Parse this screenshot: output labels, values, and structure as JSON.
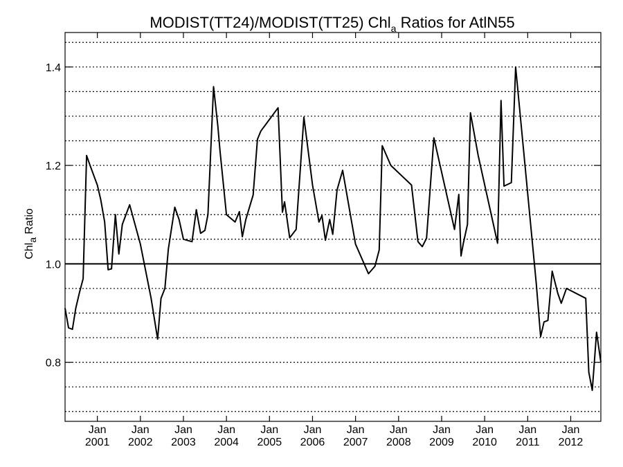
{
  "chart_data": {
    "type": "line",
    "title": {
      "part1": "MODIST(TT24)/MODIST(TT25)  Chl",
      "subscript": "a",
      "part2": " Ratios for AtlN55"
    },
    "ylabel": {
      "main": "Chl",
      "subscript": "a",
      "rest": " Ratio"
    },
    "ylim": [
      0.68,
      1.47
    ],
    "xlim": [
      2000.25,
      2012.7
    ],
    "y_ticks": [
      {
        "value": 0.8,
        "label": "0.8"
      },
      {
        "value": 1.0,
        "label": "1.0"
      },
      {
        "value": 1.2,
        "label": "1.2"
      },
      {
        "value": 1.4,
        "label": "1.4"
      }
    ],
    "y_grid_values": [
      0.7,
      0.75,
      0.8,
      0.85,
      0.9,
      0.95,
      1.05,
      1.1,
      1.15,
      1.2,
      1.25,
      1.3,
      1.35,
      1.4,
      1.45
    ],
    "grid": "dotted horizontal",
    "reference_line": 1.0,
    "x_ticks": [
      {
        "value": 2001.0,
        "month": "Jan",
        "year": "2001"
      },
      {
        "value": 2002.0,
        "month": "Jan",
        "year": "2002"
      },
      {
        "value": 2003.0,
        "month": "Jan",
        "year": "2003"
      },
      {
        "value": 2004.0,
        "month": "Jan",
        "year": "2004"
      },
      {
        "value": 2005.0,
        "month": "Jan",
        "year": "2005"
      },
      {
        "value": 2006.0,
        "month": "Jan",
        "year": "2006"
      },
      {
        "value": 2007.0,
        "month": "Jan",
        "year": "2007"
      },
      {
        "value": 2008.0,
        "month": "Jan",
        "year": "2008"
      },
      {
        "value": 2009.0,
        "month": "Jan",
        "year": "2009"
      },
      {
        "value": 2010.0,
        "month": "Jan",
        "year": "2010"
      },
      {
        "value": 2011.0,
        "month": "Jan",
        "year": "2011"
      },
      {
        "value": 2012.0,
        "month": "Jan",
        "year": "2012"
      }
    ],
    "series": [
      {
        "color": "#000000",
        "x": [
          2000.25,
          2000.33,
          2000.42,
          2000.5,
          2000.58,
          2000.67,
          2000.75,
          2000.83,
          2001.0,
          2001.08,
          2001.17,
          2001.25,
          2001.33,
          2001.42,
          2001.5,
          2001.58,
          2001.75,
          2002.0,
          2002.25,
          2002.4,
          2002.48,
          2002.57,
          2002.65,
          2002.8,
          2002.9,
          2003.0,
          2003.2,
          2003.3,
          2003.4,
          2003.5,
          2003.57,
          2003.7,
          2003.8,
          2003.85,
          2004.0,
          2004.2,
          2004.3,
          2004.37,
          2004.45,
          2004.62,
          2004.72,
          2004.8,
          2005.2,
          2005.3,
          2005.35,
          2005.47,
          2005.62,
          2005.8,
          2006.0,
          2006.15,
          2006.22,
          2006.3,
          2006.4,
          2006.47,
          2006.57,
          2006.7,
          2006.8,
          2007.0,
          2007.3,
          2007.45,
          2007.55,
          2007.62,
          2007.82,
          2008.3,
          2008.45,
          2008.55,
          2008.65,
          2008.82,
          2009.3,
          2009.4,
          2009.45,
          2009.5,
          2009.6,
          2009.67,
          2009.85,
          2010.3,
          2010.38,
          2010.45,
          2010.62,
          2010.72,
          2011.2,
          2011.3,
          2011.38,
          2011.47,
          2011.57,
          2011.7,
          2011.78,
          2011.9,
          2012.35,
          2012.42,
          2012.5,
          2012.6,
          2012.7
        ],
        "values": [
          0.91,
          0.87,
          0.867,
          0.91,
          0.94,
          0.97,
          1.22,
          1.2,
          1.16,
          1.13,
          1.085,
          0.988,
          0.99,
          1.1,
          1.02,
          1.08,
          1.12,
          1.04,
          0.93,
          0.847,
          0.93,
          0.95,
          1.03,
          1.115,
          1.09,
          1.05,
          1.045,
          1.11,
          1.062,
          1.068,
          1.1,
          1.36,
          1.28,
          1.23,
          1.1,
          1.085,
          1.106,
          1.055,
          1.09,
          1.14,
          1.253,
          1.27,
          1.317,
          1.105,
          1.126,
          1.053,
          1.07,
          1.298,
          1.16,
          1.085,
          1.098,
          1.048,
          1.09,
          1.06,
          1.15,
          1.19,
          1.14,
          1.04,
          0.98,
          0.995,
          1.028,
          1.24,
          1.2,
          1.16,
          1.045,
          1.035,
          1.052,
          1.256,
          1.07,
          1.141,
          1.016,
          1.04,
          1.08,
          1.307,
          1.22,
          1.042,
          1.332,
          1.158,
          1.165,
          1.4,
          0.96,
          0.852,
          0.882,
          0.885,
          0.985,
          0.94,
          0.92,
          0.95,
          0.93,
          0.78,
          0.743,
          0.861,
          0.8
        ]
      }
    ]
  }
}
